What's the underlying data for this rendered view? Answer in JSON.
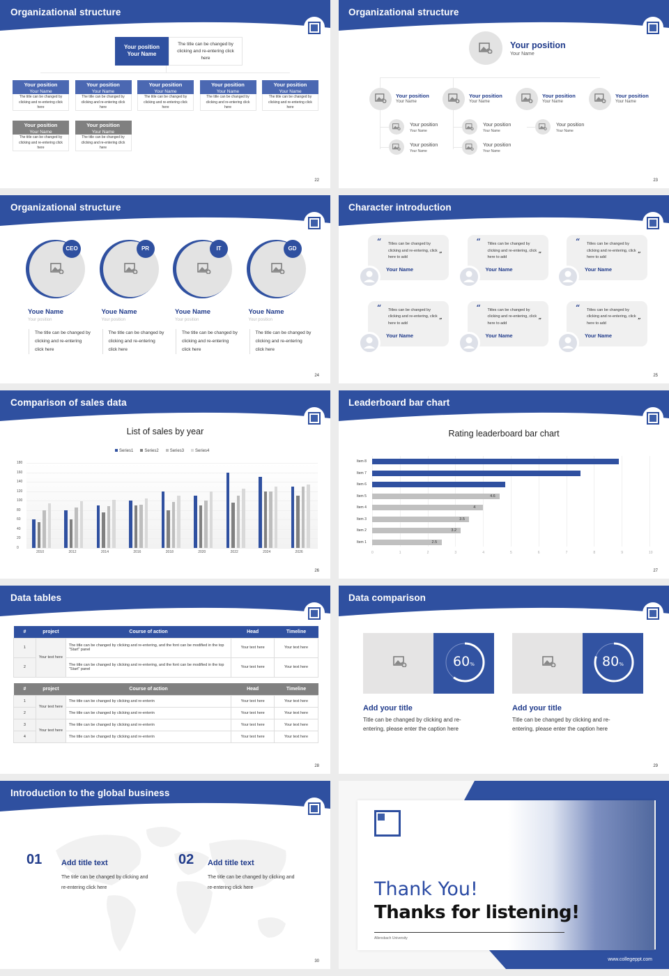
{
  "theme": {
    "primary": "#2f50a0",
    "dark_text": "#1f3a8a",
    "gray_bar": "#808080",
    "light_gray": "#e3e3e3"
  },
  "slides": {
    "s22": {
      "title": "Organizational structure",
      "page": "22",
      "top": {
        "position": "Your position",
        "name": "Your Name",
        "desc": "The title can be changed by clicking and re-entering click here"
      },
      "row1": [
        {
          "position": "Your position",
          "name": "Your Name",
          "desc": "The title can be changed by clicking and re-entering click here"
        },
        {
          "position": "Your position",
          "name": "Your Name",
          "desc": "The title can be changed by clicking and re-entering click here"
        },
        {
          "position": "Your position",
          "name": "Your Name",
          "desc": "The title can be changed by clicking and re-entering click here"
        },
        {
          "position": "Your position",
          "name": "Your Name",
          "desc": "The title can be changed by clicking and re-entering click here"
        },
        {
          "position": "Your position",
          "name": "Your Name",
          "desc": "The title can be changed by clicking and re-entering click here"
        }
      ],
      "row2": [
        {
          "position": "Your position",
          "name": "Your Name",
          "desc": "The title can be changed by clicking and re-entering click here"
        },
        {
          "position": "Your position",
          "name": "Your Name",
          "desc": "The title can be changed by clicking and re-entering click here"
        }
      ]
    },
    "s23": {
      "title": "Organizational structure",
      "page": "23",
      "top": {
        "position": "Your position",
        "name": "Your Name"
      },
      "level1": [
        {
          "position": "Your position",
          "name": "Your Name"
        },
        {
          "position": "Your position",
          "name": "Your Name"
        },
        {
          "position": "Your position",
          "name": "Your Name"
        },
        {
          "position": "Your position",
          "name": "Your Name"
        }
      ],
      "level2": [
        {
          "position": "Your position",
          "name": "Your Name"
        },
        {
          "position": "Your position",
          "name": "Your Name"
        },
        {
          "position": "Your position",
          "name": "Your Name"
        },
        {
          "position": "Your position",
          "name": "Your Name"
        },
        {
          "position": "Your position",
          "name": "Your Name"
        }
      ]
    },
    "s24": {
      "title": "Organizational structure",
      "page": "24",
      "people": [
        {
          "role": "CEO",
          "name": "Youe Name",
          "position": "Your position",
          "desc": "The title can be changed by clicking and re-entering click here"
        },
        {
          "role": "PR",
          "name": "Youe Name",
          "position": "Your position",
          "desc": "The title can be changed by clicking and re-entering click here"
        },
        {
          "role": "IT",
          "name": "Youe Name",
          "position": "Your position",
          "desc": "The title can be changed by clicking and re-entering click here"
        },
        {
          "role": "GD",
          "name": "Youe Name",
          "position": "Your position",
          "desc": "The title can be changed by clicking and re-entering click here"
        }
      ]
    },
    "s25": {
      "title": "Character introduction",
      "page": "25",
      "open_quote": "“",
      "close_quote": "”",
      "cards": [
        {
          "text": "Titles can be changed by clicking and re-entering, click here to add",
          "name": "Your Name"
        },
        {
          "text": "Titles can be changed by clicking and re-entering, click here to add",
          "name": "Your Name"
        },
        {
          "text": "Titles can be changed by clicking and re-entering, click here to add",
          "name": "Your Name"
        },
        {
          "text": "Titles can be changed by clicking and re-entering, click here to add",
          "name": "Your Name"
        },
        {
          "text": "Titles can be changed by clicking and re-entering, click here to add",
          "name": "Your Name"
        },
        {
          "text": "Titles can be changed by clicking and re-entering, click here to add",
          "name": "Your Name"
        }
      ]
    },
    "s26": {
      "title": "Comparison of sales data",
      "page": "26"
    },
    "s27": {
      "title": "Leaderboard bar chart",
      "page": "27"
    },
    "s28": {
      "title": "Data tables",
      "page": "28",
      "table1": {
        "headers": [
          "#",
          "project",
          "Course of action",
          "Head",
          "Timeline"
        ],
        "project": "Your text here",
        "rows": [
          {
            "n": "1",
            "action": "The title can be changed by clicking and re-entering, and the font can be modified in the top \"Start\" panel",
            "head": "Your text here",
            "timeline": "Your text here"
          },
          {
            "n": "2",
            "action": "The title can be changed by clicking and re-entering, and the font can be modified in the top \"Start\" panel",
            "head": "Your text here",
            "timeline": "Your text here"
          }
        ]
      },
      "table2": {
        "headers": [
          "#",
          "project",
          "Course of action",
          "Head",
          "Timeline"
        ],
        "projects": [
          "Your text here",
          "Your text here"
        ],
        "rows": [
          {
            "n": "1",
            "action": "The title can be changed by clicking and re-enterin",
            "head": "Your text here",
            "timeline": "Your text here"
          },
          {
            "n": "2",
            "action": "The title can be changed by clicking and re-enterin",
            "head": "Your text here",
            "timeline": "Your text here"
          },
          {
            "n": "3",
            "action": "The title can be changed by clicking and re-enterin",
            "head": "Your text here",
            "timeline": "Your text here"
          },
          {
            "n": "4",
            "action": "The title can be changed by clicking and re-enterin",
            "head": "Your text here",
            "timeline": "Your text here"
          }
        ]
      }
    },
    "s29": {
      "title": "Data comparison",
      "page": "29",
      "items": [
        {
          "value": "60",
          "unit": "%",
          "percent": 60,
          "heading": "Add your title",
          "desc": "Title can be changed by clicking and re-entering, please enter the caption here"
        },
        {
          "value": "80",
          "unit": "%",
          "percent": 80,
          "heading": "Add your title",
          "desc": "Title can be changed by clicking and re-entering, please enter the caption here"
        }
      ]
    },
    "s30": {
      "title": "Introduction to the global business",
      "page": "30",
      "blocks": [
        {
          "num": "01",
          "title": "Add title text",
          "desc": "The title can be changed by clicking and re-entering click here"
        },
        {
          "num": "02",
          "title": "Add title text",
          "desc": "The title can be changed by clicking and re-entering click here"
        }
      ]
    },
    "s31": {
      "line1": "Thank You!",
      "line2": "Thanks for listening!",
      "university": "Allensbach University",
      "url": "www.collegeppt.com"
    }
  },
  "chart_data": [
    {
      "type": "bar",
      "title": "List of sales by year",
      "categories": [
        "2010",
        "2012",
        "2014",
        "2016",
        "2018",
        "2020",
        "2022",
        "2024",
        "2026"
      ],
      "series": [
        {
          "name": "Series1",
          "color": "#2f50a0",
          "values": [
            60,
            80,
            90,
            100,
            120,
            110,
            160,
            150,
            130
          ]
        },
        {
          "name": "Series2",
          "color": "#808080",
          "values": [
            55,
            60,
            75,
            90,
            80,
            90,
            96,
            120,
            110
          ]
        },
        {
          "name": "Series3",
          "color": "#bdbdbd",
          "values": [
            80,
            86,
            88,
            92,
            98,
            100,
            110,
            120,
            130
          ]
        },
        {
          "name": "Series4",
          "color": "#d9d9d9",
          "values": [
            95,
            99,
            102,
            105,
            110,
            120,
            126,
            130,
            135
          ]
        }
      ],
      "yticks": [
        "0",
        "20",
        "40",
        "60",
        "80",
        "100",
        "120",
        "140",
        "160",
        "180"
      ],
      "ylim": [
        0,
        180
      ],
      "xlabel": "",
      "ylabel": "",
      "legend_position": "top",
      "grid": true
    },
    {
      "type": "bar",
      "orientation": "horizontal",
      "title": "Rating leaderboard bar chart",
      "categories": [
        "Item 8",
        "Item 7",
        "Item 6",
        "Item 5",
        "Item 4",
        "Item 3",
        "Item 2",
        "Item 1"
      ],
      "values": [
        8.9,
        7.5,
        4.8,
        4.6,
        4,
        3.5,
        3.2,
        2.5
      ],
      "labels": [
        "",
        "",
        "",
        "4.6",
        "4",
        "3.5",
        "3.2",
        "2.5"
      ],
      "highlight_top": 3,
      "xticks": [
        "0",
        "1",
        "2",
        "3",
        "4",
        "5",
        "6",
        "7",
        "8",
        "9",
        "10"
      ],
      "xlim": [
        0,
        10
      ],
      "grid": true
    }
  ]
}
